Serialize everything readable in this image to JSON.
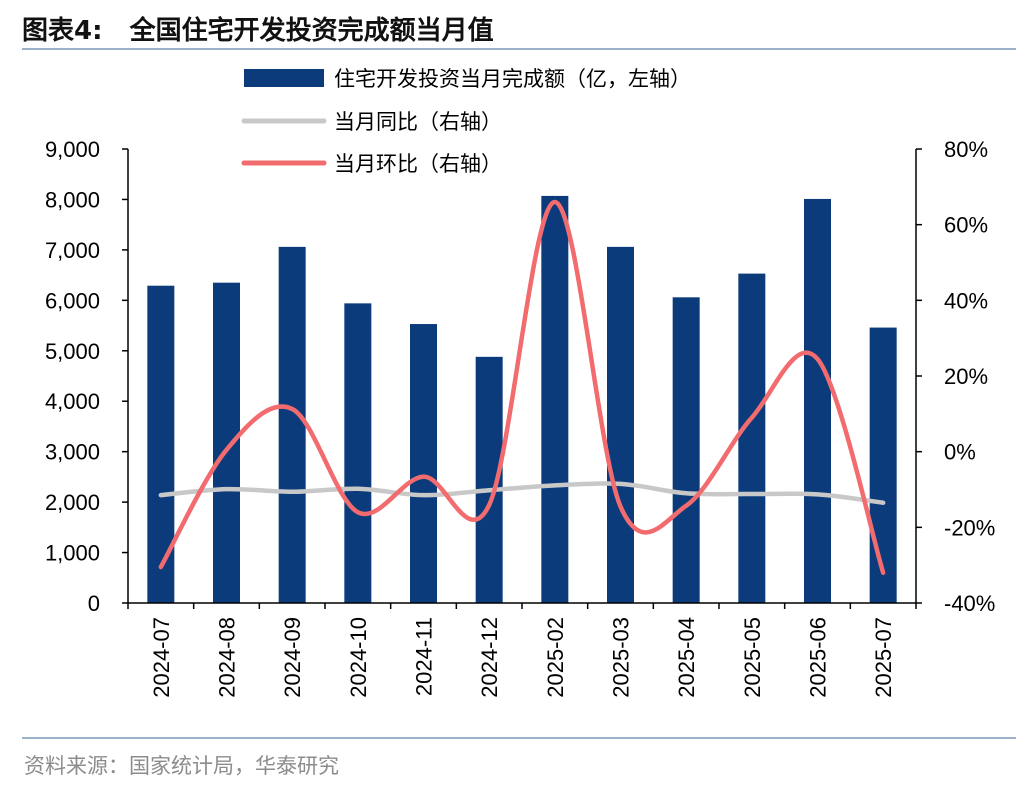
{
  "header": {
    "figure_label": "图表4:",
    "title": "全国住宅开发投资完成额当月值"
  },
  "footer": {
    "source": "资料来源：国家统计局，华泰研究"
  },
  "colors": {
    "bar": "#0b3b7a",
    "yoy_line": "#c8c8c8",
    "mom_line": "#f26b6e",
    "rule": "#9bb0c9"
  },
  "chart_data": {
    "type": "bar+line",
    "categories": [
      "2024-07",
      "2024-08",
      "2024-09",
      "2024-10",
      "2024-11",
      "2024-12",
      "2025-02",
      "2025-03",
      "2025-04",
      "2025-05",
      "2025-06",
      "2025-07"
    ],
    "series": [
      {
        "name": "住宅开发投资当月完成额（亿，左轴）",
        "type": "bar",
        "axis": "left",
        "values": [
          6290,
          6350,
          7060,
          5940,
          5530,
          4880,
          8070,
          7060,
          6060,
          6530,
          8010,
          5460
        ]
      },
      {
        "name": "当月同比（右轴）",
        "type": "line",
        "axis": "right",
        "values": [
          -11.5,
          -9.9,
          -10.6,
          -9.8,
          -11.5,
          -10.2,
          -8.9,
          -8.5,
          -11.0,
          -11.2,
          -11.3,
          -13.5
        ]
      },
      {
        "name": "当月环比（右轴）",
        "type": "line",
        "axis": "right",
        "values": [
          -30.5,
          0.5,
          11.3,
          -16.0,
          -6.6,
          -14.1,
          66.0,
          -14.5,
          -14.3,
          9.0,
          24.5,
          -32.0
        ]
      }
    ],
    "y_left": {
      "min": 0,
      "max": 9000,
      "step": 1000,
      "tick_labels": [
        "0",
        "1,000",
        "2,000",
        "3,000",
        "4,000",
        "5,000",
        "6,000",
        "7,000",
        "8,000",
        "9,000"
      ]
    },
    "y_right": {
      "min": -40,
      "max": 80,
      "step": 20,
      "tick_labels": [
        "-40%",
        "-20%",
        "0%",
        "20%",
        "40%",
        "60%",
        "80%"
      ]
    },
    "legend_position": "top",
    "grid": false
  }
}
